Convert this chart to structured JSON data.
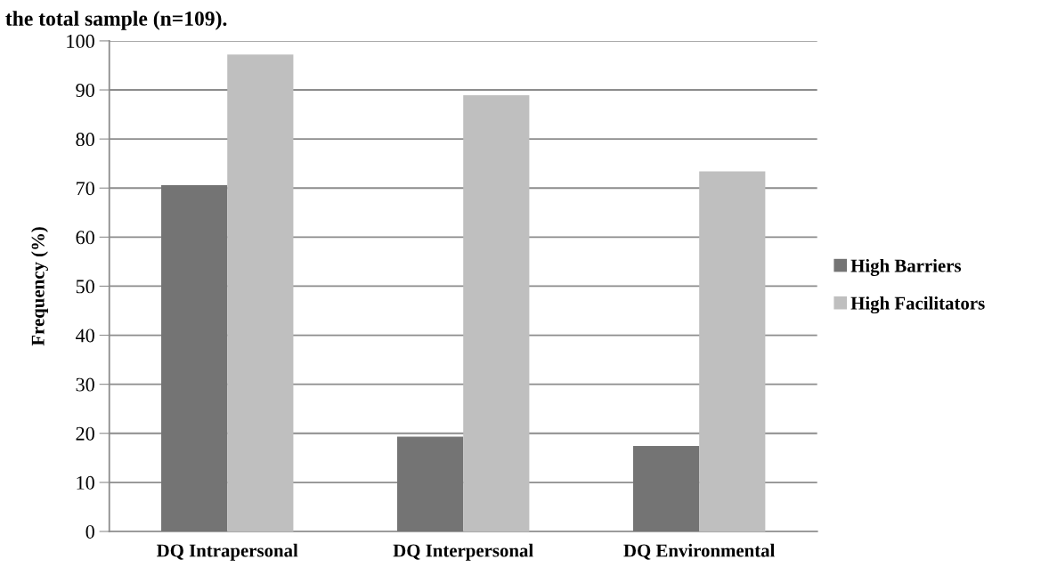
{
  "chart_data": {
    "type": "bar",
    "title": "the total sample (n=109).",
    "ylabel": "Frequency (%)",
    "categories": [
      "DQ Intrapersonal",
      "DQ Interpersonal",
      "DQ Environmental"
    ],
    "series": [
      {
        "name": "High Barriers",
        "color": "#747474",
        "values": [
          70.6,
          19.3,
          17.4
        ]
      },
      {
        "name": "High Facilitators",
        "color": "#bfbfbf",
        "values": [
          97.2,
          88.9,
          73.4
        ]
      }
    ],
    "ylim": [
      0,
      100
    ],
    "yticks": [
      0,
      10,
      20,
      30,
      40,
      50,
      60,
      70,
      80,
      90,
      100
    ],
    "grid": "y",
    "legend": "right"
  }
}
